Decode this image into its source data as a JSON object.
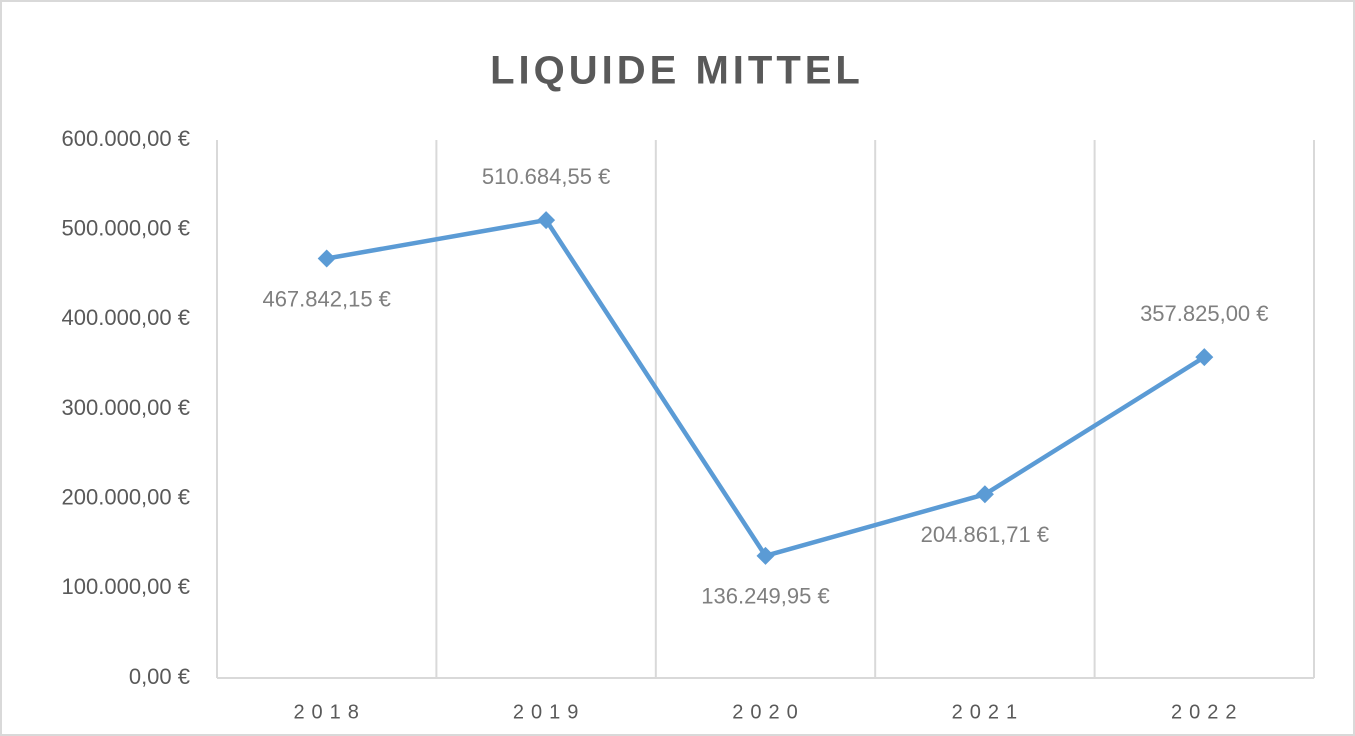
{
  "chart_data": {
    "type": "line",
    "title": "LIQUIDE MITTEL",
    "categories": [
      "2018",
      "2019",
      "2020",
      "2021",
      "2022"
    ],
    "values": [
      467842.15,
      510684.55,
      136249.95,
      204861.71,
      357825.0
    ],
    "value_labels": [
      "467.842,15 €",
      "510.684,55 €",
      "136.249,95 €",
      "204.861,71 €",
      "357.825,00 €"
    ],
    "color": "#5b9bd5",
    "ylim": [
      0,
      600000
    ],
    "yticks": [
      {
        "value": 0,
        "label": "0,00 €"
      },
      {
        "value": 100000,
        "label": "100.000,00 €"
      },
      {
        "value": 200000,
        "label": "200.000,00 €"
      },
      {
        "value": 300000,
        "label": "300.000,00 €"
      },
      {
        "value": 400000,
        "label": "400.000,00 €"
      },
      {
        "value": 500000,
        "label": "500.000,00 €"
      },
      {
        "value": 600000,
        "label": "600.000,00 €"
      }
    ],
    "grid": "vertical"
  }
}
